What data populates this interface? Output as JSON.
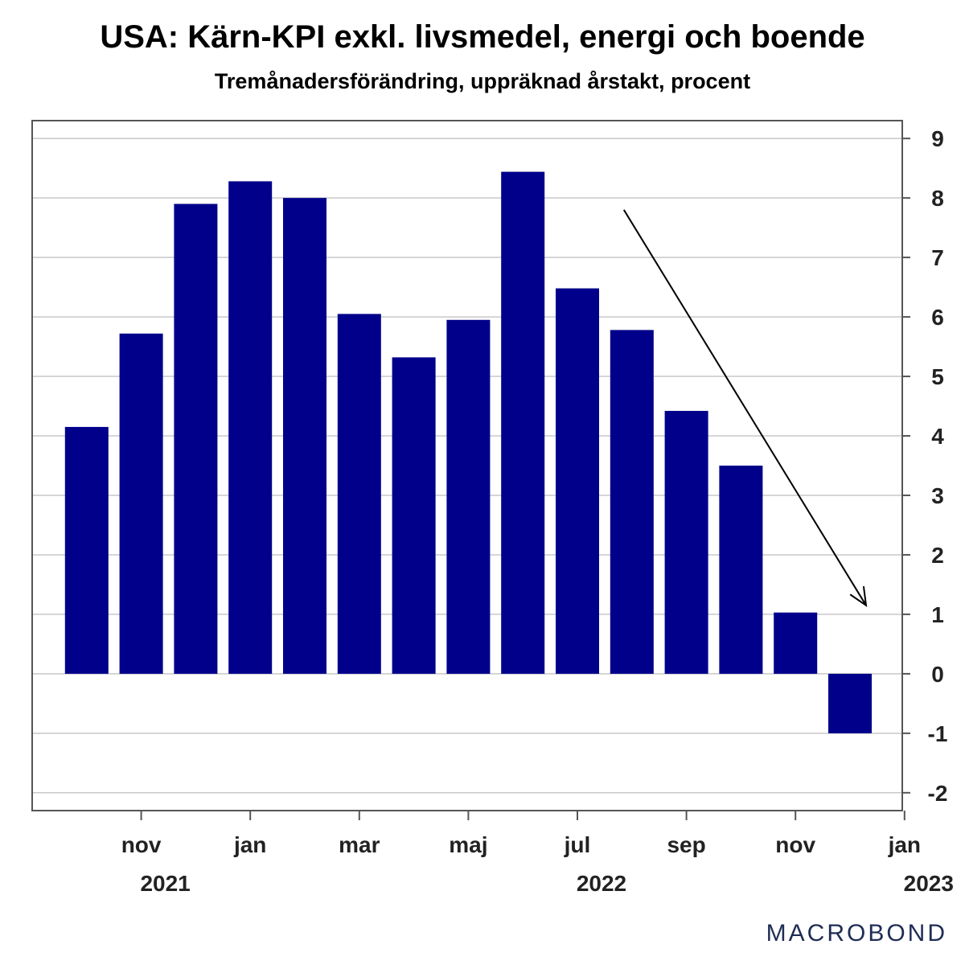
{
  "title": "USA: Kärn-KPI exkl. livsmedel, energi och boende",
  "subtitle": "Tremånadersförändring, uppräknad årstakt, procent",
  "logo": "MACROBOND",
  "colors": {
    "bar": "#00008B",
    "grid": "#c8c8c8",
    "frame": "#555555",
    "arrow": "#000000"
  },
  "chart_data": {
    "type": "bar",
    "title": "USA: Kärn-KPI exkl. livsmedel, energi och boende",
    "subtitle": "Tremånadersförändring, uppräknad årstakt, procent",
    "months": [
      "2021-10",
      "2021-11",
      "2021-12",
      "2022-01",
      "2022-02",
      "2022-03",
      "2022-04",
      "2022-05",
      "2022-06",
      "2022-07",
      "2022-08",
      "2022-09",
      "2022-10",
      "2022-11",
      "2022-12"
    ],
    "values": [
      4.15,
      5.72,
      7.9,
      8.28,
      8.0,
      6.05,
      5.32,
      5.95,
      8.44,
      6.48,
      5.78,
      4.42,
      3.5,
      1.03,
      -1.0
    ],
    "ylim": [
      -2.3,
      9.3
    ],
    "yticks": [
      -2,
      -1,
      0,
      1,
      2,
      3,
      4,
      5,
      6,
      7,
      8,
      9
    ],
    "xtick_labels": [
      {
        "label": "nov",
        "at": "2021-11"
      },
      {
        "label": "jan",
        "at": "2022-01"
      },
      {
        "label": "mar",
        "at": "2022-03"
      },
      {
        "label": "maj",
        "at": "2022-05"
      },
      {
        "label": "jul",
        "at": "2022-07"
      },
      {
        "label": "sep",
        "at": "2022-09"
      },
      {
        "label": "nov",
        "at": "2022-11"
      },
      {
        "label": "jan",
        "at": "2023-01"
      }
    ],
    "year_labels": [
      {
        "label": "2021",
        "at": "2021-11"
      },
      {
        "label": "2022",
        "at": "2022-07"
      },
      {
        "label": "2023",
        "at": "2023-01"
      }
    ],
    "y_axis_side": "right",
    "grid": true,
    "annotation": {
      "type": "arrow",
      "from": {
        "x": "2022-08",
        "y": 7.8
      },
      "to": {
        "x": "2022-12",
        "y": 1.15
      }
    }
  }
}
